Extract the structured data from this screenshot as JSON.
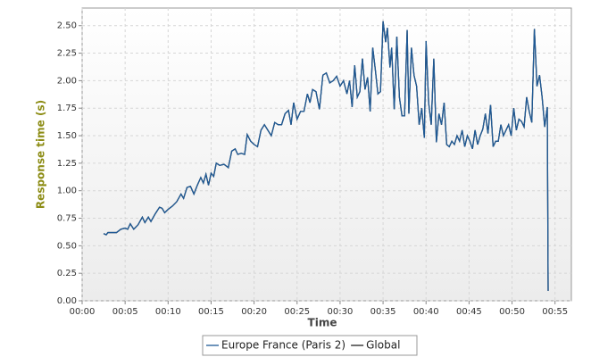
{
  "chart_data": {
    "type": "line",
    "x_label": "Time",
    "y_label": "Response time (s)",
    "x": [
      2.5,
      2.8,
      3.0,
      3.5,
      4.0,
      4.5,
      5.0,
      5.3,
      5.6,
      6.0,
      6.5,
      7.0,
      7.3,
      7.7,
      8.0,
      8.5,
      9.0,
      9.3,
      9.6,
      10.0,
      10.5,
      11.0,
      11.5,
      11.8,
      12.2,
      12.6,
      13.0,
      13.4,
      13.8,
      14.1,
      14.4,
      14.7,
      15.0,
      15.3,
      15.6,
      16.0,
      16.5,
      17.0,
      17.4,
      17.8,
      18.1,
      18.5,
      18.9,
      19.2,
      19.6,
      20.0,
      20.4,
      20.8,
      21.2,
      21.6,
      22.0,
      22.4,
      22.8,
      23.2,
      23.6,
      24.0,
      24.3,
      24.6,
      25.0,
      25.4,
      25.8,
      26.2,
      26.5,
      26.8,
      27.2,
      27.6,
      28.0,
      28.4,
      28.8,
      29.2,
      29.6,
      30.0,
      30.4,
      30.8,
      31.1,
      31.4,
      31.7,
      32.0,
      32.3,
      32.6,
      32.9,
      33.2,
      33.5,
      33.8,
      34.1,
      34.4,
      34.7,
      35.0,
      35.3,
      35.5,
      35.8,
      36.0,
      36.3,
      36.6,
      36.9,
      37.2,
      37.5,
      37.8,
      38.0,
      38.3,
      38.6,
      38.9,
      39.2,
      39.5,
      39.8,
      40.0,
      40.3,
      40.6,
      40.9,
      41.2,
      41.5,
      41.8,
      42.1,
      42.4,
      42.7,
      43.0,
      43.3,
      43.6,
      43.9,
      44.2,
      44.5,
      44.8,
      45.1,
      45.4,
      45.7,
      46.0,
      46.3,
      46.6,
      46.9,
      47.2,
      47.5,
      47.8,
      48.1,
      48.4,
      48.7,
      49.0,
      49.3,
      49.6,
      49.9,
      50.2,
      50.5,
      50.8,
      51.1,
      51.4,
      51.7,
      52.0,
      52.3,
      52.6,
      52.9,
      53.2,
      53.5,
      53.8,
      54.1,
      54.2
    ],
    "series": [
      {
        "name": "Europe France (Paris 2)",
        "color": "#1f5a96",
        "values": [
          0.61,
          0.6,
          0.62,
          0.62,
          0.62,
          0.65,
          0.66,
          0.65,
          0.7,
          0.65,
          0.69,
          0.76,
          0.71,
          0.76,
          0.72,
          0.79,
          0.85,
          0.84,
          0.8,
          0.83,
          0.86,
          0.9,
          0.97,
          0.93,
          1.03,
          1.04,
          0.97,
          1.05,
          1.12,
          1.07,
          1.15,
          1.05,
          1.16,
          1.13,
          1.25,
          1.23,
          1.24,
          1.21,
          1.36,
          1.38,
          1.33,
          1.34,
          1.33,
          1.51,
          1.45,
          1.42,
          1.4,
          1.55,
          1.6,
          1.55,
          1.5,
          1.62,
          1.6,
          1.6,
          1.7,
          1.73,
          1.6,
          1.8,
          1.65,
          1.72,
          1.72,
          1.88,
          1.8,
          1.92,
          1.9,
          1.74,
          2.05,
          2.07,
          1.98,
          2.0,
          2.04,
          1.95,
          2.0,
          1.88,
          2.0,
          1.76,
          2.14,
          1.85,
          1.9,
          2.2,
          1.92,
          2.03,
          1.72,
          2.3,
          2.1,
          1.88,
          1.9,
          2.54,
          2.35,
          2.48,
          2.12,
          2.3,
          1.74,
          2.4,
          1.85,
          1.68,
          1.68,
          2.46,
          1.7,
          2.3,
          2.05,
          1.95,
          1.6,
          1.75,
          1.48,
          2.36,
          1.8,
          1.6,
          2.2,
          1.44,
          1.7,
          1.6,
          1.8,
          1.42,
          1.4,
          1.45,
          1.42,
          1.5,
          1.45,
          1.55,
          1.4,
          1.5,
          1.45,
          1.38,
          1.55,
          1.42,
          1.5,
          1.56,
          1.7,
          1.52,
          1.78,
          1.4,
          1.45,
          1.45,
          1.6,
          1.5,
          1.55,
          1.6,
          1.5,
          1.75,
          1.55,
          1.65,
          1.63,
          1.58,
          1.85,
          1.72,
          1.62,
          2.47,
          1.95,
          2.05,
          1.85,
          1.58,
          1.76,
          0.09
        ]
      },
      {
        "name": "Global",
        "color": "#222222",
        "values": [
          0.61,
          0.6,
          0.62,
          0.62,
          0.62,
          0.65,
          0.66,
          0.65,
          0.7,
          0.65,
          0.69,
          0.76,
          0.71,
          0.76,
          0.72,
          0.79,
          0.85,
          0.84,
          0.8,
          0.83,
          0.86,
          0.9,
          0.97,
          0.93,
          1.03,
          1.04,
          0.97,
          1.05,
          1.12,
          1.07,
          1.15,
          1.05,
          1.16,
          1.13,
          1.25,
          1.23,
          1.24,
          1.21,
          1.36,
          1.38,
          1.33,
          1.34,
          1.33,
          1.51,
          1.45,
          1.42,
          1.4,
          1.55,
          1.6,
          1.55,
          1.5,
          1.62,
          1.6,
          1.6,
          1.7,
          1.73,
          1.6,
          1.8,
          1.65,
          1.72,
          1.72,
          1.88,
          1.8,
          1.92,
          1.9,
          1.74,
          2.05,
          2.07,
          1.98,
          2.0,
          2.04,
          1.95,
          2.0,
          1.88,
          2.0,
          1.76,
          2.14,
          1.85,
          1.9,
          2.2,
          1.92,
          2.03,
          1.72,
          2.3,
          2.1,
          1.88,
          1.9,
          2.54,
          2.35,
          2.48,
          2.12,
          2.3,
          1.74,
          2.4,
          1.85,
          1.68,
          1.68,
          2.46,
          1.7,
          2.3,
          2.05,
          1.95,
          1.6,
          1.75,
          1.48,
          2.36,
          1.8,
          1.6,
          2.2,
          1.44,
          1.7,
          1.6,
          1.8,
          1.42,
          1.4,
          1.45,
          1.42,
          1.5,
          1.45,
          1.55,
          1.4,
          1.5,
          1.45,
          1.38,
          1.55,
          1.42,
          1.5,
          1.56,
          1.7,
          1.52,
          1.78,
          1.4,
          1.45,
          1.45,
          1.6,
          1.5,
          1.55,
          1.6,
          1.5,
          1.75,
          1.55,
          1.65,
          1.63,
          1.58,
          1.85,
          1.72,
          1.62,
          2.47,
          1.95,
          2.05,
          1.85,
          1.58,
          1.76,
          0.09
        ]
      }
    ],
    "xlim": [
      0,
      56.9
    ],
    "xticks": [
      {
        "value": 0,
        "label": "00:00"
      },
      {
        "value": 5,
        "label": "00:05"
      },
      {
        "value": 10,
        "label": "00:10"
      },
      {
        "value": 15,
        "label": "00:15"
      },
      {
        "value": 20,
        "label": "00:20"
      },
      {
        "value": 25,
        "label": "00:25"
      },
      {
        "value": 30,
        "label": "00:30"
      },
      {
        "value": 35,
        "label": "00:35"
      },
      {
        "value": 40,
        "label": "00:40"
      },
      {
        "value": 45,
        "label": "00:45"
      },
      {
        "value": 50,
        "label": "00:50"
      },
      {
        "value": 55,
        "label": "00:55"
      }
    ],
    "ylim": [
      0,
      2.66
    ],
    "yticks": [
      {
        "value": 0,
        "label": "0.00"
      },
      {
        "value": 0.25,
        "label": "0.25"
      },
      {
        "value": 0.5,
        "label": "0.50"
      },
      {
        "value": 0.75,
        "label": "0.75"
      },
      {
        "value": 1,
        "label": "1.00"
      },
      {
        "value": 1.25,
        "label": "1.25"
      },
      {
        "value": 1.5,
        "label": "1.50"
      },
      {
        "value": 1.75,
        "label": "1.75"
      },
      {
        "value": 2,
        "label": "2.00"
      },
      {
        "value": 2.25,
        "label": "2.25"
      },
      {
        "value": 2.5,
        "label": "2.50"
      }
    ],
    "grid": true
  }
}
